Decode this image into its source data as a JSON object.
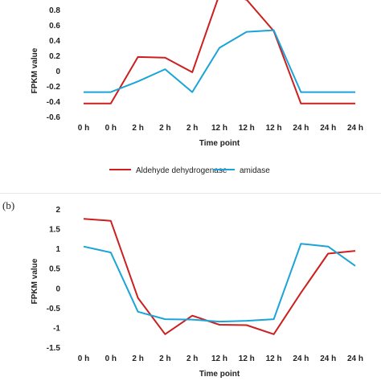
{
  "chart_data": [
    {
      "type": "line",
      "title": "",
      "xlabel": "Time point",
      "ylabel": "FPKM value",
      "categories": [
        "0 h",
        "0 h",
        "2 h",
        "2 h",
        "2 h",
        "12 h",
        "12 h",
        "12 h",
        "24 h",
        "24 h",
        "24 h"
      ],
      "ylim": [
        -0.6,
        0.8
      ],
      "yticks": [
        "0.8",
        "0.6",
        "0.4",
        "0.2",
        "0",
        "-0.2",
        "-0.4",
        "-0.6"
      ],
      "ytick_values": [
        0.8,
        0.6,
        0.4,
        0.2,
        0,
        -0.2,
        -0.4,
        -0.6
      ],
      "grid": false,
      "legend_position": "bottom",
      "series": [
        {
          "name": "Aldehyde dehydrogenase",
          "color": "#cc1f1f",
          "values": [
            -0.43,
            -0.43,
            0.18,
            0.17,
            -0.02,
            1.0,
            0.93,
            0.52,
            -0.43,
            -0.43,
            -0.43
          ]
        },
        {
          "name": "amidase",
          "color": "#1aa4d8",
          "values": [
            -0.28,
            -0.28,
            -0.14,
            0.02,
            -0.28,
            0.3,
            0.51,
            0.53,
            -0.28,
            -0.28,
            -0.28
          ]
        }
      ]
    },
    {
      "type": "line",
      "panel_label": "(b)",
      "title": "",
      "xlabel": "Time point",
      "ylabel": "FPKM value",
      "categories": [
        "0 h",
        "0 h",
        "2 h",
        "2 h",
        "2 h",
        "12 h",
        "12 h",
        "12 h",
        "24 h",
        "24 h",
        "24 h"
      ],
      "ylim": [
        -1.5,
        2
      ],
      "yticks": [
        "2",
        "1.5",
        "1",
        "0.5",
        "0",
        "-0.5",
        "-1",
        "-1.5"
      ],
      "ytick_values": [
        2,
        1.5,
        1,
        0.5,
        0,
        -0.5,
        -1,
        -1.5
      ],
      "grid": false,
      "series": [
        {
          "name": "Aldehyde dehydrogenase",
          "color": "#cc1f1f",
          "values": [
            1.75,
            1.7,
            -0.25,
            -1.17,
            -0.7,
            -0.93,
            -0.94,
            -1.17,
            -0.12,
            0.87,
            0.94
          ]
        },
        {
          "name": "amidase",
          "color": "#1aa4d8",
          "values": [
            1.05,
            0.9,
            -0.6,
            -0.79,
            -0.8,
            -0.85,
            -0.83,
            -0.79,
            1.12,
            1.05,
            0.56
          ]
        }
      ]
    }
  ]
}
